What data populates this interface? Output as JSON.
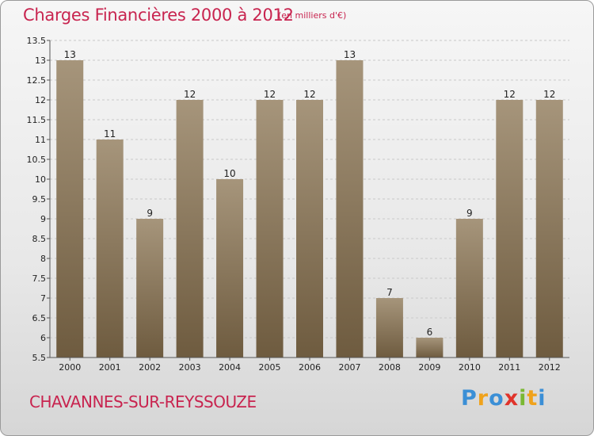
{
  "header": {
    "title": "Charges Financières 2000 à 2012",
    "subtitle": "(en milliers d'€)"
  },
  "footer": {
    "commune": "CHAVANNES-SUR-REYSSOUZE",
    "brand": [
      "P",
      "r",
      "o",
      "x",
      "i",
      "t",
      "i"
    ],
    "brand_colors": [
      "#3b8fd6",
      "#f0a21b",
      "#3b8fd6",
      "#e0332a",
      "#7ab833",
      "#f0a21b",
      "#3b8fd6"
    ]
  },
  "colors": {
    "bar_top": "#a6957b",
    "bar_bottom": "#6e5b3f",
    "title": "#c8244f"
  },
  "chart_data": {
    "type": "bar",
    "categories": [
      "2000",
      "2001",
      "2002",
      "2003",
      "2004",
      "2005",
      "2006",
      "2007",
      "2008",
      "2009",
      "2010",
      "2011",
      "2012"
    ],
    "values": [
      13,
      11,
      9,
      12,
      10,
      12,
      12,
      13,
      7,
      6,
      9,
      12,
      12
    ],
    "ylim": [
      5.5,
      13.5
    ],
    "yticks": [
      5.5,
      6,
      6.5,
      7,
      7.5,
      8,
      8.5,
      9,
      9.5,
      10,
      10.5,
      11,
      11.5,
      12,
      12.5,
      13,
      13.5
    ],
    "ytick_labels": [
      "5.5",
      "6",
      "6.5",
      "7",
      "7.5",
      "8",
      "8.5",
      "9",
      "9.5",
      "10",
      "10.5",
      "11",
      "11.5",
      "12",
      "12.5",
      "13",
      "13.5"
    ],
    "grid": true
  }
}
